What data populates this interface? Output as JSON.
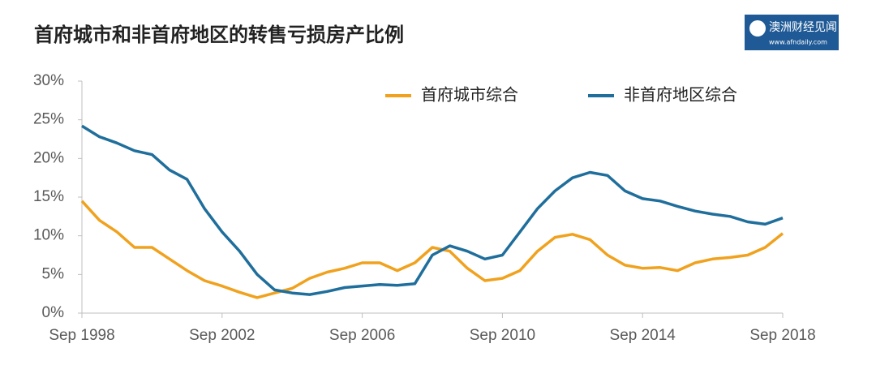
{
  "chart_data": {
    "type": "line",
    "title": "首府城市和非首府地区的转售亏损房产比例",
    "brand": "澳洲财经见闻",
    "brand_url": "www.afndaily.com",
    "x": [
      1998.67,
      1999.17,
      1999.67,
      2000.17,
      2000.67,
      2001.17,
      2001.67,
      2002.17,
      2002.67,
      2003.17,
      2003.67,
      2004.17,
      2004.67,
      2005.17,
      2005.67,
      2006.17,
      2006.67,
      2007.17,
      2007.67,
      2008.17,
      2008.67,
      2009.17,
      2009.67,
      2010.17,
      2010.67,
      2011.17,
      2011.67,
      2012.17,
      2012.67,
      2013.17,
      2013.67,
      2014.17,
      2014.67,
      2015.17,
      2015.67,
      2016.17,
      2016.67,
      2017.17,
      2017.67,
      2018.17,
      2018.67
    ],
    "series": [
      {
        "name": "首府城市综合",
        "color": "#f0a21e",
        "values": [
          14.5,
          12,
          10.5,
          8.5,
          8.5,
          7,
          5.5,
          4.2,
          3.5,
          2.7,
          2,
          2.6,
          3.2,
          4.5,
          5.3,
          5.8,
          6.5,
          6.5,
          5.5,
          6.5,
          8.5,
          8,
          5.8,
          4.2,
          4.5,
          5.5,
          8,
          9.8,
          10.2,
          9.5,
          7.5,
          6.2,
          5.8,
          5.9,
          5.5,
          6.5,
          7,
          7.2,
          7.5,
          8.5,
          10.3
        ]
      },
      {
        "name": "非首府地区综合",
        "color": "#1f6e9c",
        "values": [
          24.2,
          22.8,
          22,
          21,
          20.5,
          18.5,
          17.3,
          13.5,
          10.5,
          8,
          5,
          3,
          2.6,
          2.4,
          2.8,
          3.3,
          3.5,
          3.7,
          3.6,
          3.8,
          7.5,
          8.7,
          8,
          7,
          7.5,
          10.5,
          13.5,
          15.8,
          17.5,
          18.2,
          17.8,
          15.8,
          14.8,
          14.5,
          13.8,
          13.2,
          12.8,
          12.5,
          11.8,
          11.5,
          12.3
        ]
      }
    ],
    "xlim": [
      1998.67,
      2018.67
    ],
    "xticks": [
      {
        "value": 1998.67,
        "label": "Sep 1998"
      },
      {
        "value": 2002.67,
        "label": "Sep 2002"
      },
      {
        "value": 2006.67,
        "label": "Sep 2006"
      },
      {
        "value": 2010.67,
        "label": "Sep 2010"
      },
      {
        "value": 2014.67,
        "label": "Sep 2014"
      },
      {
        "value": 2018.67,
        "label": "Sep 2018"
      }
    ],
    "ylim": [
      0,
      30
    ],
    "yticks": [
      {
        "value": 0,
        "label": "0%"
      },
      {
        "value": 5,
        "label": "5%"
      },
      {
        "value": 10,
        "label": "10%"
      },
      {
        "value": 15,
        "label": "15%"
      },
      {
        "value": 20,
        "label": "20%"
      },
      {
        "value": 25,
        "label": "25%"
      },
      {
        "value": 30,
        "label": "30%"
      }
    ],
    "grid": false,
    "legend": "top"
  }
}
